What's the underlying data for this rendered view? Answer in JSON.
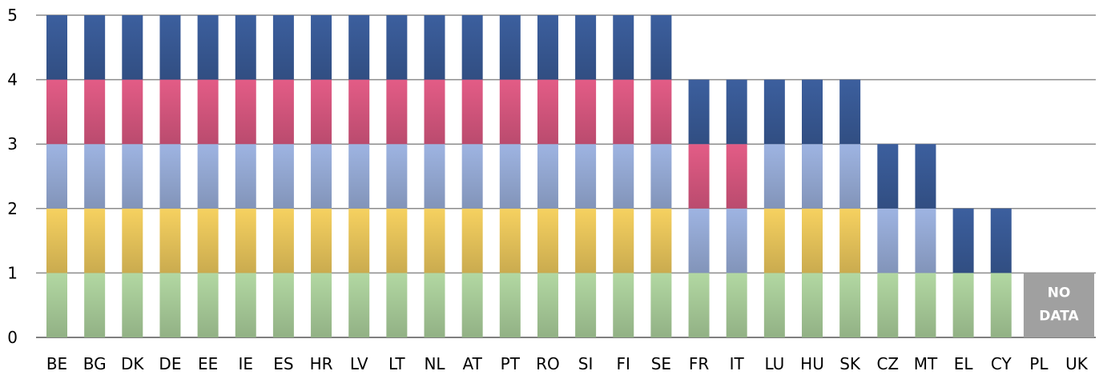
{
  "chart_data": {
    "type": "bar",
    "stacked": true,
    "title": "",
    "xlabel": "",
    "ylabel": "",
    "ylim": [
      0,
      5
    ],
    "yticks": [
      "0",
      "1",
      "2",
      "3",
      "4",
      "5"
    ],
    "grid": true,
    "categories": [
      "BE",
      "BG",
      "DK",
      "DE",
      "EE",
      "IE",
      "ES",
      "HR",
      "LV",
      "LT",
      "NL",
      "AT",
      "PT",
      "RO",
      "SI",
      "FI",
      "SE",
      "FR",
      "IT",
      "LU",
      "HU",
      "SK",
      "CZ",
      "MT",
      "EL",
      "CY",
      "PL",
      "UK"
    ],
    "segment_colors": {
      "green": "#b2d8a2",
      "yellow": "#f6d160",
      "lightblue": "#9eb4e2",
      "pink": "#e35c86",
      "darkblue": "#3c5f9e"
    },
    "stacks": [
      [
        "green",
        "yellow",
        "lightblue",
        "pink",
        "darkblue"
      ],
      [
        "green",
        "yellow",
        "lightblue",
        "pink",
        "darkblue"
      ],
      [
        "green",
        "yellow",
        "lightblue",
        "pink",
        "darkblue"
      ],
      [
        "green",
        "yellow",
        "lightblue",
        "pink",
        "darkblue"
      ],
      [
        "green",
        "yellow",
        "lightblue",
        "pink",
        "darkblue"
      ],
      [
        "green",
        "yellow",
        "lightblue",
        "pink",
        "darkblue"
      ],
      [
        "green",
        "yellow",
        "lightblue",
        "pink",
        "darkblue"
      ],
      [
        "green",
        "yellow",
        "lightblue",
        "pink",
        "darkblue"
      ],
      [
        "green",
        "yellow",
        "lightblue",
        "pink",
        "darkblue"
      ],
      [
        "green",
        "yellow",
        "lightblue",
        "pink",
        "darkblue"
      ],
      [
        "green",
        "yellow",
        "lightblue",
        "pink",
        "darkblue"
      ],
      [
        "green",
        "yellow",
        "lightblue",
        "pink",
        "darkblue"
      ],
      [
        "green",
        "yellow",
        "lightblue",
        "pink",
        "darkblue"
      ],
      [
        "green",
        "yellow",
        "lightblue",
        "pink",
        "darkblue"
      ],
      [
        "green",
        "yellow",
        "lightblue",
        "pink",
        "darkblue"
      ],
      [
        "green",
        "yellow",
        "lightblue",
        "pink",
        "darkblue"
      ],
      [
        "green",
        "yellow",
        "lightblue",
        "pink",
        "darkblue"
      ],
      [
        "green",
        "lightblue",
        "pink",
        "darkblue"
      ],
      [
        "green",
        "lightblue",
        "pink",
        "darkblue"
      ],
      [
        "green",
        "yellow",
        "lightblue",
        "darkblue"
      ],
      [
        "green",
        "yellow",
        "lightblue",
        "darkblue"
      ],
      [
        "green",
        "yellow",
        "lightblue",
        "darkblue"
      ],
      [
        "green",
        "lightblue",
        "darkblue"
      ],
      [
        "green",
        "lightblue",
        "darkblue"
      ],
      [
        "green",
        "darkblue"
      ],
      [
        "green",
        "darkblue"
      ],
      [],
      []
    ],
    "totals": [
      5,
      5,
      5,
      5,
      5,
      5,
      5,
      5,
      5,
      5,
      5,
      5,
      5,
      5,
      5,
      5,
      5,
      4,
      4,
      4,
      4,
      4,
      3,
      3,
      2,
      2,
      null,
      null
    ],
    "no_data": {
      "categories": [
        "PL",
        "UK"
      ],
      "label_line1": "NO",
      "label_line2": "DATA",
      "value": 1,
      "color": "#a0a0a0"
    }
  }
}
